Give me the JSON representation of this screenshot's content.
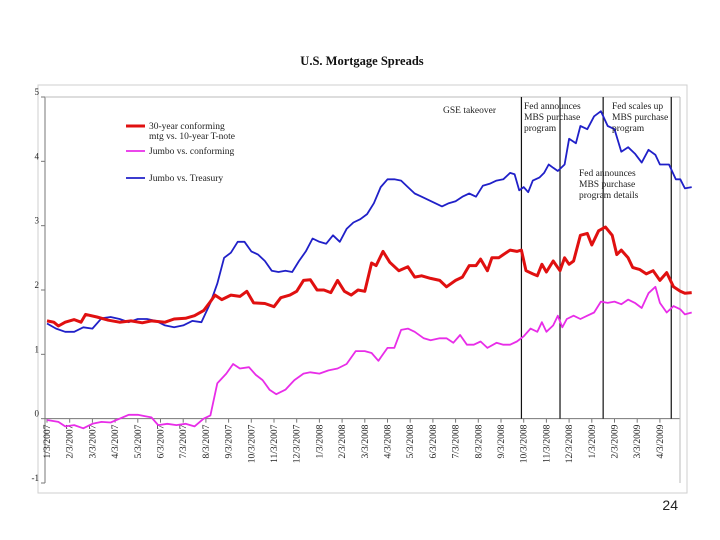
{
  "chart_data": {
    "type": "line",
    "title": "U.S. Mortgage Spreads",
    "xlabel": "",
    "ylabel": "",
    "ylim": [
      -1,
      5
    ],
    "yticks": [
      -1,
      0,
      1,
      2,
      3,
      4,
      5
    ],
    "grid": false,
    "legend_position": "top-left",
    "x_labels": [
      "1/3/2007",
      "2/3/2007",
      "3/3/2007",
      "4/3/2007",
      "5/3/2007",
      "6/3/2007",
      "7/3/2007",
      "8/3/2007",
      "9/3/2007",
      "10/3/2007",
      "11/3/2007",
      "12/3/2007",
      "1/3/2008",
      "2/3/2008",
      "3/3/2008",
      "4/3/2008",
      "5/3/2008",
      "6/3/2008",
      "7/3/2008",
      "8/3/2008",
      "9/3/2008",
      "10/3/2008",
      "11/3/2008",
      "12/3/2008",
      "1/3/2009",
      "2/3/2009",
      "3/3/2009",
      "4/3/2009"
    ],
    "series": [
      {
        "name": "30-year conforming mtg vs. 10-year T-note",
        "color": "#e01010",
        "points": [
          [
            0,
            1.52
          ],
          [
            0.3,
            1.5
          ],
          [
            0.5,
            1.44
          ],
          [
            0.8,
            1.5
          ],
          [
            1.2,
            1.54
          ],
          [
            1.5,
            1.5
          ],
          [
            1.7,
            1.62
          ],
          [
            2.2,
            1.58
          ],
          [
            2.7,
            1.53
          ],
          [
            3.2,
            1.5
          ],
          [
            3.7,
            1.52
          ],
          [
            4.2,
            1.49
          ],
          [
            4.6,
            1.52
          ],
          [
            5.2,
            1.5
          ],
          [
            5.6,
            1.55
          ],
          [
            6.1,
            1.56
          ],
          [
            6.5,
            1.6
          ],
          [
            6.9,
            1.68
          ],
          [
            7.2,
            1.82
          ],
          [
            7.4,
            1.92
          ],
          [
            7.7,
            1.85
          ],
          [
            8.1,
            1.92
          ],
          [
            8.5,
            1.9
          ],
          [
            8.8,
            1.98
          ],
          [
            9.1,
            1.8
          ],
          [
            9.6,
            1.79
          ],
          [
            10.0,
            1.74
          ],
          [
            10.3,
            1.88
          ],
          [
            10.7,
            1.92
          ],
          [
            11.0,
            1.98
          ],
          [
            11.3,
            2.15
          ],
          [
            11.6,
            2.16
          ],
          [
            11.9,
            2.0
          ],
          [
            12.2,
            2.0
          ],
          [
            12.5,
            1.96
          ],
          [
            12.8,
            2.15
          ],
          [
            13.1,
            1.98
          ],
          [
            13.4,
            1.92
          ],
          [
            13.7,
            2.0
          ],
          [
            14.0,
            1.98
          ],
          [
            14.3,
            2.42
          ],
          [
            14.5,
            2.38
          ],
          [
            14.8,
            2.6
          ],
          [
            15.1,
            2.43
          ],
          [
            15.5,
            2.3
          ],
          [
            15.9,
            2.36
          ],
          [
            16.2,
            2.2
          ],
          [
            16.5,
            2.22
          ],
          [
            16.9,
            2.18
          ],
          [
            17.3,
            2.15
          ],
          [
            17.6,
            2.05
          ],
          [
            18.0,
            2.15
          ],
          [
            18.3,
            2.2
          ],
          [
            18.6,
            2.38
          ],
          [
            18.9,
            2.38
          ],
          [
            19.1,
            2.48
          ],
          [
            19.4,
            2.3
          ],
          [
            19.6,
            2.5
          ],
          [
            19.9,
            2.5
          ],
          [
            20.1,
            2.55
          ],
          [
            20.4,
            2.62
          ],
          [
            20.7,
            2.6
          ],
          [
            20.9,
            2.62
          ],
          [
            21.1,
            2.3
          ],
          [
            21.4,
            2.25
          ],
          [
            21.6,
            2.22
          ],
          [
            21.8,
            2.4
          ],
          [
            22.0,
            2.28
          ],
          [
            22.3,
            2.45
          ],
          [
            22.6,
            2.3
          ],
          [
            22.8,
            2.5
          ],
          [
            23.0,
            2.4
          ],
          [
            23.2,
            2.45
          ],
          [
            23.5,
            2.85
          ],
          [
            23.8,
            2.88
          ],
          [
            24.0,
            2.7
          ],
          [
            24.3,
            2.92
          ],
          [
            24.6,
            2.98
          ],
          [
            24.9,
            2.85
          ],
          [
            25.1,
            2.55
          ],
          [
            25.3,
            2.62
          ],
          [
            25.6,
            2.5
          ],
          [
            25.8,
            2.35
          ],
          [
            26.1,
            2.32
          ],
          [
            26.4,
            2.25
          ],
          [
            26.7,
            2.3
          ],
          [
            27.0,
            2.15
          ],
          [
            27.3,
            2.27
          ],
          [
            27.6,
            2.05
          ],
          [
            27.9,
            1.98
          ],
          [
            28.1,
            1.95
          ],
          [
            28.4,
            1.96
          ]
        ]
      },
      {
        "name": "Jumbo vs. conforming",
        "color": "#e82de8",
        "points": [
          [
            0,
            -0.02
          ],
          [
            0.5,
            -0.05
          ],
          [
            0.8,
            -0.12
          ],
          [
            1.2,
            -0.1
          ],
          [
            1.6,
            -0.15
          ],
          [
            2.0,
            -0.08
          ],
          [
            2.4,
            -0.05
          ],
          [
            2.8,
            -0.06
          ],
          [
            3.2,
            0.0
          ],
          [
            3.6,
            0.06
          ],
          [
            4.0,
            0.06
          ],
          [
            4.3,
            0.04
          ],
          [
            4.6,
            0.02
          ],
          [
            4.9,
            -0.1
          ],
          [
            5.3,
            -0.08
          ],
          [
            5.7,
            -0.1
          ],
          [
            6.1,
            -0.08
          ],
          [
            6.5,
            -0.12
          ],
          [
            6.9,
            0.0
          ],
          [
            7.2,
            0.05
          ],
          [
            7.5,
            0.55
          ],
          [
            7.9,
            0.7
          ],
          [
            8.2,
            0.85
          ],
          [
            8.5,
            0.78
          ],
          [
            8.9,
            0.8
          ],
          [
            9.2,
            0.68
          ],
          [
            9.5,
            0.6
          ],
          [
            9.8,
            0.45
          ],
          [
            10.1,
            0.38
          ],
          [
            10.5,
            0.45
          ],
          [
            10.9,
            0.6
          ],
          [
            11.3,
            0.7
          ],
          [
            11.6,
            0.72
          ],
          [
            12.0,
            0.7
          ],
          [
            12.4,
            0.75
          ],
          [
            12.8,
            0.78
          ],
          [
            13.2,
            0.85
          ],
          [
            13.6,
            1.05
          ],
          [
            14.0,
            1.05
          ],
          [
            14.3,
            1.02
          ],
          [
            14.6,
            0.9
          ],
          [
            15.0,
            1.1
          ],
          [
            15.3,
            1.1
          ],
          [
            15.6,
            1.38
          ],
          [
            15.9,
            1.4
          ],
          [
            16.2,
            1.35
          ],
          [
            16.6,
            1.25
          ],
          [
            16.9,
            1.22
          ],
          [
            17.3,
            1.25
          ],
          [
            17.6,
            1.25
          ],
          [
            17.9,
            1.18
          ],
          [
            18.2,
            1.3
          ],
          [
            18.5,
            1.15
          ],
          [
            18.8,
            1.15
          ],
          [
            19.1,
            1.2
          ],
          [
            19.4,
            1.1
          ],
          [
            19.8,
            1.18
          ],
          [
            20.1,
            1.15
          ],
          [
            20.4,
            1.15
          ],
          [
            20.7,
            1.2
          ],
          [
            21.0,
            1.28
          ],
          [
            21.3,
            1.4
          ],
          [
            21.6,
            1.35
          ],
          [
            21.8,
            1.5
          ],
          [
            22.0,
            1.35
          ],
          [
            22.3,
            1.45
          ],
          [
            22.5,
            1.6
          ],
          [
            22.7,
            1.42
          ],
          [
            22.9,
            1.55
          ],
          [
            23.2,
            1.6
          ],
          [
            23.5,
            1.55
          ],
          [
            23.8,
            1.6
          ],
          [
            24.1,
            1.65
          ],
          [
            24.4,
            1.82
          ],
          [
            24.7,
            1.8
          ],
          [
            25.0,
            1.82
          ],
          [
            25.3,
            1.78
          ],
          [
            25.6,
            1.85
          ],
          [
            25.9,
            1.8
          ],
          [
            26.2,
            1.72
          ],
          [
            26.5,
            1.95
          ],
          [
            26.8,
            2.05
          ],
          [
            27.0,
            1.8
          ],
          [
            27.3,
            1.65
          ],
          [
            27.6,
            1.75
          ],
          [
            27.9,
            1.7
          ],
          [
            28.1,
            1.62
          ],
          [
            28.4,
            1.65
          ]
        ]
      },
      {
        "name": "Jumbo vs. Treasury",
        "color": "#2020c8",
        "points": [
          [
            0,
            1.48
          ],
          [
            0.4,
            1.4
          ],
          [
            0.8,
            1.35
          ],
          [
            1.2,
            1.35
          ],
          [
            1.6,
            1.42
          ],
          [
            2.0,
            1.4
          ],
          [
            2.4,
            1.56
          ],
          [
            2.8,
            1.58
          ],
          [
            3.2,
            1.55
          ],
          [
            3.6,
            1.5
          ],
          [
            4.0,
            1.55
          ],
          [
            4.4,
            1.55
          ],
          [
            4.8,
            1.52
          ],
          [
            5.2,
            1.45
          ],
          [
            5.6,
            1.42
          ],
          [
            6.0,
            1.45
          ],
          [
            6.4,
            1.52
          ],
          [
            6.8,
            1.5
          ],
          [
            7.2,
            1.8
          ],
          [
            7.5,
            2.1
          ],
          [
            7.8,
            2.5
          ],
          [
            8.1,
            2.58
          ],
          [
            8.4,
            2.75
          ],
          [
            8.7,
            2.75
          ],
          [
            9.0,
            2.6
          ],
          [
            9.3,
            2.55
          ],
          [
            9.6,
            2.45
          ],
          [
            9.9,
            2.3
          ],
          [
            10.2,
            2.28
          ],
          [
            10.5,
            2.3
          ],
          [
            10.8,
            2.28
          ],
          [
            11.1,
            2.45
          ],
          [
            11.4,
            2.6
          ],
          [
            11.7,
            2.8
          ],
          [
            12.0,
            2.75
          ],
          [
            12.3,
            2.72
          ],
          [
            12.6,
            2.85
          ],
          [
            12.9,
            2.75
          ],
          [
            13.2,
            2.95
          ],
          [
            13.5,
            3.05
          ],
          [
            13.8,
            3.1
          ],
          [
            14.1,
            3.18
          ],
          [
            14.4,
            3.35
          ],
          [
            14.7,
            3.6
          ],
          [
            15.0,
            3.72
          ],
          [
            15.3,
            3.72
          ],
          [
            15.6,
            3.7
          ],
          [
            15.9,
            3.6
          ],
          [
            16.2,
            3.5
          ],
          [
            16.5,
            3.45
          ],
          [
            16.8,
            3.4
          ],
          [
            17.1,
            3.35
          ],
          [
            17.4,
            3.3
          ],
          [
            17.7,
            3.35
          ],
          [
            18.0,
            3.38
          ],
          [
            18.3,
            3.45
          ],
          [
            18.6,
            3.5
          ],
          [
            18.9,
            3.45
          ],
          [
            19.2,
            3.62
          ],
          [
            19.5,
            3.65
          ],
          [
            19.8,
            3.7
          ],
          [
            20.1,
            3.72
          ],
          [
            20.4,
            3.82
          ],
          [
            20.6,
            3.8
          ],
          [
            20.8,
            3.55
          ],
          [
            21.0,
            3.6
          ],
          [
            21.2,
            3.52
          ],
          [
            21.4,
            3.7
          ],
          [
            21.7,
            3.75
          ],
          [
            21.9,
            3.82
          ],
          [
            22.1,
            3.95
          ],
          [
            22.3,
            3.9
          ],
          [
            22.5,
            3.85
          ],
          [
            22.8,
            3.95
          ],
          [
            23.0,
            4.35
          ],
          [
            23.3,
            4.28
          ],
          [
            23.5,
            4.55
          ],
          [
            23.8,
            4.5
          ],
          [
            24.1,
            4.7
          ],
          [
            24.4,
            4.78
          ],
          [
            24.7,
            4.55
          ],
          [
            25.0,
            4.5
          ],
          [
            25.3,
            4.15
          ],
          [
            25.6,
            4.22
          ],
          [
            25.9,
            4.12
          ],
          [
            26.2,
            3.98
          ],
          [
            26.5,
            4.18
          ],
          [
            26.8,
            4.1
          ],
          [
            27.0,
            3.95
          ],
          [
            27.4,
            3.95
          ],
          [
            27.7,
            3.72
          ],
          [
            27.9,
            3.72
          ],
          [
            28.1,
            3.58
          ],
          [
            28.4,
            3.6
          ]
        ]
      }
    ],
    "event_lines": [
      {
        "x": 20.9,
        "label": "GSE takeover",
        "lines": [
          "GSE takeover"
        ]
      },
      {
        "x": 22.6,
        "label": "Fed announces MBS purchase program",
        "lines": [
          "Fed announces",
          "MBS purchase",
          "program"
        ]
      },
      {
        "x": 24.5,
        "label": "Fed announces MBS purchase program details",
        "lines": [
          "Fed announces",
          "MBS purchase",
          "program details"
        ]
      },
      {
        "x": 27.5,
        "label": "Fed scales up MBS purchase program",
        "lines": [
          "Fed scales up",
          "MBS purchase",
          "program"
        ]
      }
    ]
  },
  "legend": [
    {
      "lines": [
        "30-year conforming",
        "mtg vs. 10-year T-note"
      ],
      "color": "#e01010"
    },
    {
      "lines": [
        "Jumbo vs. conforming"
      ],
      "color": "#e82de8"
    },
    {
      "lines": [
        "Jumbo vs. Treasury"
      ],
      "color": "#2020c8"
    }
  ],
  "page_number": "24"
}
